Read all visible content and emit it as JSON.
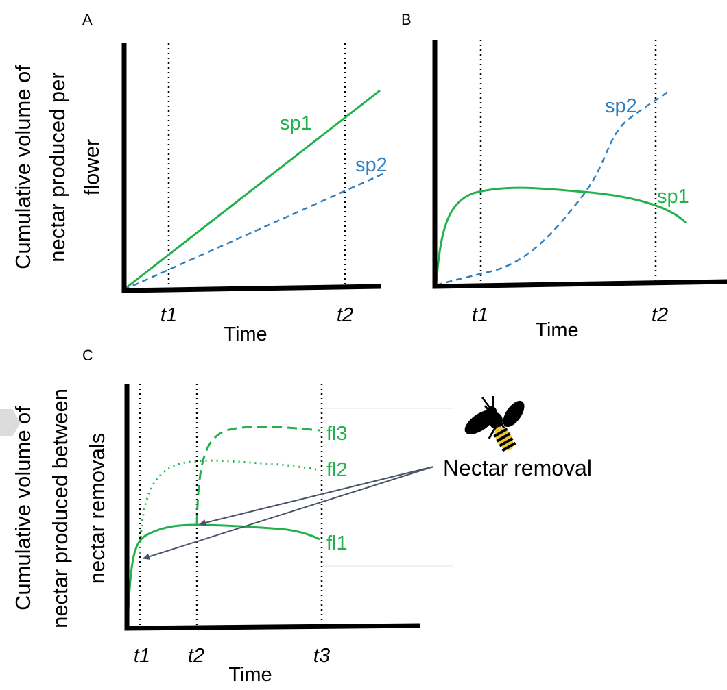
{
  "colors": {
    "green": "#22b14c",
    "blue": "#2e7fc1",
    "axis": "#000000",
    "arrow": "#4a5468"
  },
  "panel_a": {
    "letter": "A",
    "ylabel": [
      "Cumulative volume of",
      "nectar produced per",
      "flower"
    ],
    "xlabel": "Time",
    "t1": "t1",
    "t2": "t2",
    "sp1": "sp1",
    "sp2": "sp2"
  },
  "panel_b": {
    "letter": "B",
    "xlabel": "Time",
    "t1": "t1",
    "t2": "t2",
    "sp1": "sp1",
    "sp2": "sp2"
  },
  "panel_c": {
    "letter": "C",
    "ylabel": [
      "Cumulative volume of",
      "nectar produced between",
      "nectar removals"
    ],
    "xlabel": "Time",
    "t1": "t1",
    "t2": "t2",
    "t3": "t3",
    "fl1": "fl1",
    "fl2": "fl2",
    "fl3": "fl3",
    "callout": "Nectar removal",
    "icon": "bee-icon"
  }
}
